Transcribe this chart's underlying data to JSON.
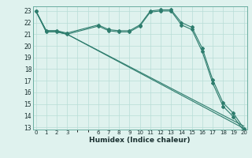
{
  "xlabel": "Humidex (Indice chaleur)",
  "bg_color": "#dff2ee",
  "grid_color": "#b8ddd6",
  "line_color": "#2e7d6e",
  "series": {
    "line1": {
      "x": [
        0,
        1,
        2,
        3,
        6,
        7,
        8,
        9,
        10,
        11,
        12,
        13,
        14,
        15,
        16,
        17,
        18,
        19,
        20
      ],
      "y": [
        23,
        21.3,
        21.3,
        21.1,
        21.8,
        21.4,
        21.3,
        21.3,
        21.8,
        23.0,
        23.1,
        23.1,
        22.0,
        21.6,
        19.8,
        17.1,
        15.1,
        14.2,
        12.9
      ]
    },
    "line2": {
      "x": [
        0,
        1,
        2,
        3,
        6,
        7,
        8,
        9,
        10,
        11,
        12,
        13,
        14,
        15,
        16,
        17,
        18,
        19,
        20
      ],
      "y": [
        23,
        21.2,
        21.2,
        21.0,
        21.7,
        21.3,
        21.2,
        21.2,
        21.7,
        22.9,
        23.0,
        23.0,
        21.8,
        21.4,
        19.5,
        16.8,
        14.8,
        13.9,
        12.7
      ]
    },
    "line3": {
      "x": [
        0,
        1,
        2,
        3,
        20
      ],
      "y": [
        23,
        21.3,
        21.3,
        21.0,
        12.9
      ]
    },
    "line4": {
      "x": [
        0,
        1,
        2,
        3,
        20
      ],
      "y": [
        23,
        21.2,
        21.2,
        21.0,
        13.1
      ]
    }
  },
  "xlim": [
    -0.3,
    20.3
  ],
  "ylim": [
    12.8,
    23.4
  ],
  "yticks": [
    13,
    14,
    15,
    16,
    17,
    18,
    19,
    20,
    21,
    22,
    23
  ],
  "xticks": [
    0,
    1,
    2,
    3,
    6,
    7,
    8,
    9,
    10,
    11,
    12,
    13,
    14,
    15,
    16,
    17,
    18,
    19,
    20
  ]
}
